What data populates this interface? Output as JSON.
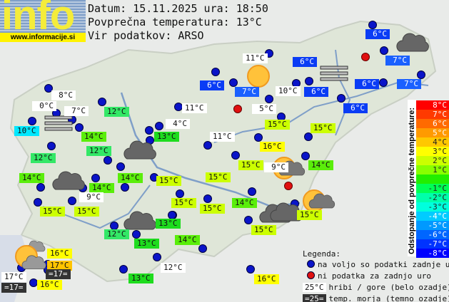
{
  "header": {
    "logo_text": "info",
    "url": "www.informacije.si",
    "date_line": "Datum: 15.11.2025 ura: 18:50",
    "avg_line": "Povprečna temperatura: 13°C",
    "source_line": "Vir podatkov: ARSO"
  },
  "colors": {
    "station_ok": "#0a14c8",
    "station_missing": "#e01010",
    "mountain_bg": "#ffffff",
    "sea_bg": "#333333"
  },
  "labels": [
    {
      "t": "6°C",
      "c": "blue"
    },
    {
      "t": "11°C",
      "c": "white"
    },
    {
      "t": "6°C",
      "c": "blue"
    },
    {
      "t": "7°C",
      "c": "blue7"
    },
    {
      "t": "6°C",
      "c": "blue"
    },
    {
      "t": "7°C",
      "c": "blue7"
    },
    {
      "t": "10°C",
      "c": "white"
    },
    {
      "t": "6°C",
      "c": "blue"
    },
    {
      "t": "6°C",
      "c": "blue"
    },
    {
      "t": "7°C",
      "c": "blue7"
    },
    {
      "t": "6°C",
      "c": "blue"
    },
    {
      "t": "8°C",
      "c": "white"
    },
    {
      "t": "0°C",
      "c": "white"
    },
    {
      "t": "7°C",
      "c": "white"
    },
    {
      "t": "12°C",
      "c": "g12"
    },
    {
      "t": "11°C",
      "c": "white"
    },
    {
      "t": "5°C",
      "c": "white"
    },
    {
      "t": "10°C",
      "c": "cyan"
    },
    {
      "t": "4°C",
      "c": "white"
    },
    {
      "t": "15°C",
      "c": "yg"
    },
    {
      "t": "15°C",
      "c": "yg"
    },
    {
      "t": "14°C",
      "c": "g14"
    },
    {
      "t": "13°C",
      "c": "g13"
    },
    {
      "t": "11°C",
      "c": "white"
    },
    {
      "t": "16°C",
      "c": "yel"
    },
    {
      "t": "12°C",
      "c": "g12"
    },
    {
      "t": "12°C",
      "c": "g12"
    },
    {
      "t": "9°C",
      "c": "white"
    },
    {
      "t": "15°C",
      "c": "yg"
    },
    {
      "t": "14°C",
      "c": "g14"
    },
    {
      "t": "14°C",
      "c": "g14"
    },
    {
      "t": "14°C",
      "c": "g14"
    },
    {
      "t": "14°C",
      "c": "g14"
    },
    {
      "t": "15°C",
      "c": "yg"
    },
    {
      "t": "15°C",
      "c": "yg"
    },
    {
      "t": "9°C",
      "c": "white"
    },
    {
      "t": "15°C",
      "c": "yg"
    },
    {
      "t": "14°C",
      "c": "g14"
    },
    {
      "t": "15°C",
      "c": "yg"
    },
    {
      "t": "15°C",
      "c": "yg"
    },
    {
      "t": "15°C",
      "c": "yg"
    },
    {
      "t": "13°C",
      "c": "g13"
    },
    {
      "t": "15°C",
      "c": "yg"
    },
    {
      "t": "12°C",
      "c": "g12"
    },
    {
      "t": "13°C",
      "c": "g13"
    },
    {
      "t": "14°C",
      "c": "g14"
    },
    {
      "t": "15°C",
      "c": "yg"
    },
    {
      "t": "16°C",
      "c": "yel"
    },
    {
      "t": "17°C",
      "c": "org"
    },
    {
      "t": "=17=",
      "c": "dark"
    },
    {
      "t": "12°C",
      "c": "white"
    },
    {
      "t": "17°C",
      "c": "white"
    },
    {
      "t": "=17=",
      "c": "dark"
    },
    {
      "t": "16°C",
      "c": "yel"
    },
    {
      "t": "13°C",
      "c": "g13"
    },
    {
      "t": "16°C",
      "c": "yel"
    }
  ],
  "icons": [
    {
      "type": "cloud"
    },
    {
      "type": "cloud"
    },
    {
      "type": "cloud"
    },
    {
      "type": "cloud"
    },
    {
      "type": "cloud"
    },
    {
      "type": "cloud"
    },
    {
      "type": "fog"
    },
    {
      "type": "fog"
    },
    {
      "type": "sun"
    },
    {
      "type": "sun-cloud"
    },
    {
      "type": "sun-cloud"
    },
    {
      "type": "sun-clouds"
    }
  ],
  "scale": {
    "title": "Odstopanje od povprečne temperature:",
    "rows": [
      {
        "t": "8°C",
        "bg": "#ff0000"
      },
      {
        "t": "7°C",
        "bg": "#ff3a00"
      },
      {
        "t": "6°C",
        "bg": "#ff6a00"
      },
      {
        "t": "5°C",
        "bg": "#ff9a00"
      },
      {
        "t": "4°C",
        "bg": "#ffc800"
      },
      {
        "t": "3°C",
        "bg": "#ffff00"
      },
      {
        "t": "2°C",
        "bg": "#ccff00"
      },
      {
        "t": "1°C",
        "bg": "#88ff00"
      },
      {
        "t": "",
        "bg": "#22ee00"
      },
      {
        "t": "-1°C",
        "bg": "#00ff55"
      },
      {
        "t": "-2°C",
        "bg": "#00ffaa"
      },
      {
        "t": "-3°C",
        "bg": "#00ffdd"
      },
      {
        "t": "-4°C",
        "bg": "#00ccff"
      },
      {
        "t": "-5°C",
        "bg": "#0099ff"
      },
      {
        "t": "-6°C",
        "bg": "#0066ff"
      },
      {
        "t": "-7°C",
        "bg": "#0033ff"
      },
      {
        "t": "-8°C",
        "bg": "#0000ff"
      }
    ]
  },
  "legend": {
    "title": "Legenda:",
    "ok": "na voljo so podatki zadnje ure",
    "missing": "ni podatka za zadnjo uro",
    "mountain_sample": "25°C",
    "mountain": "hribi / gore (belo ozadje)",
    "sea_sample": "=25=",
    "sea": "temp. morja (temno ozadje)"
  }
}
